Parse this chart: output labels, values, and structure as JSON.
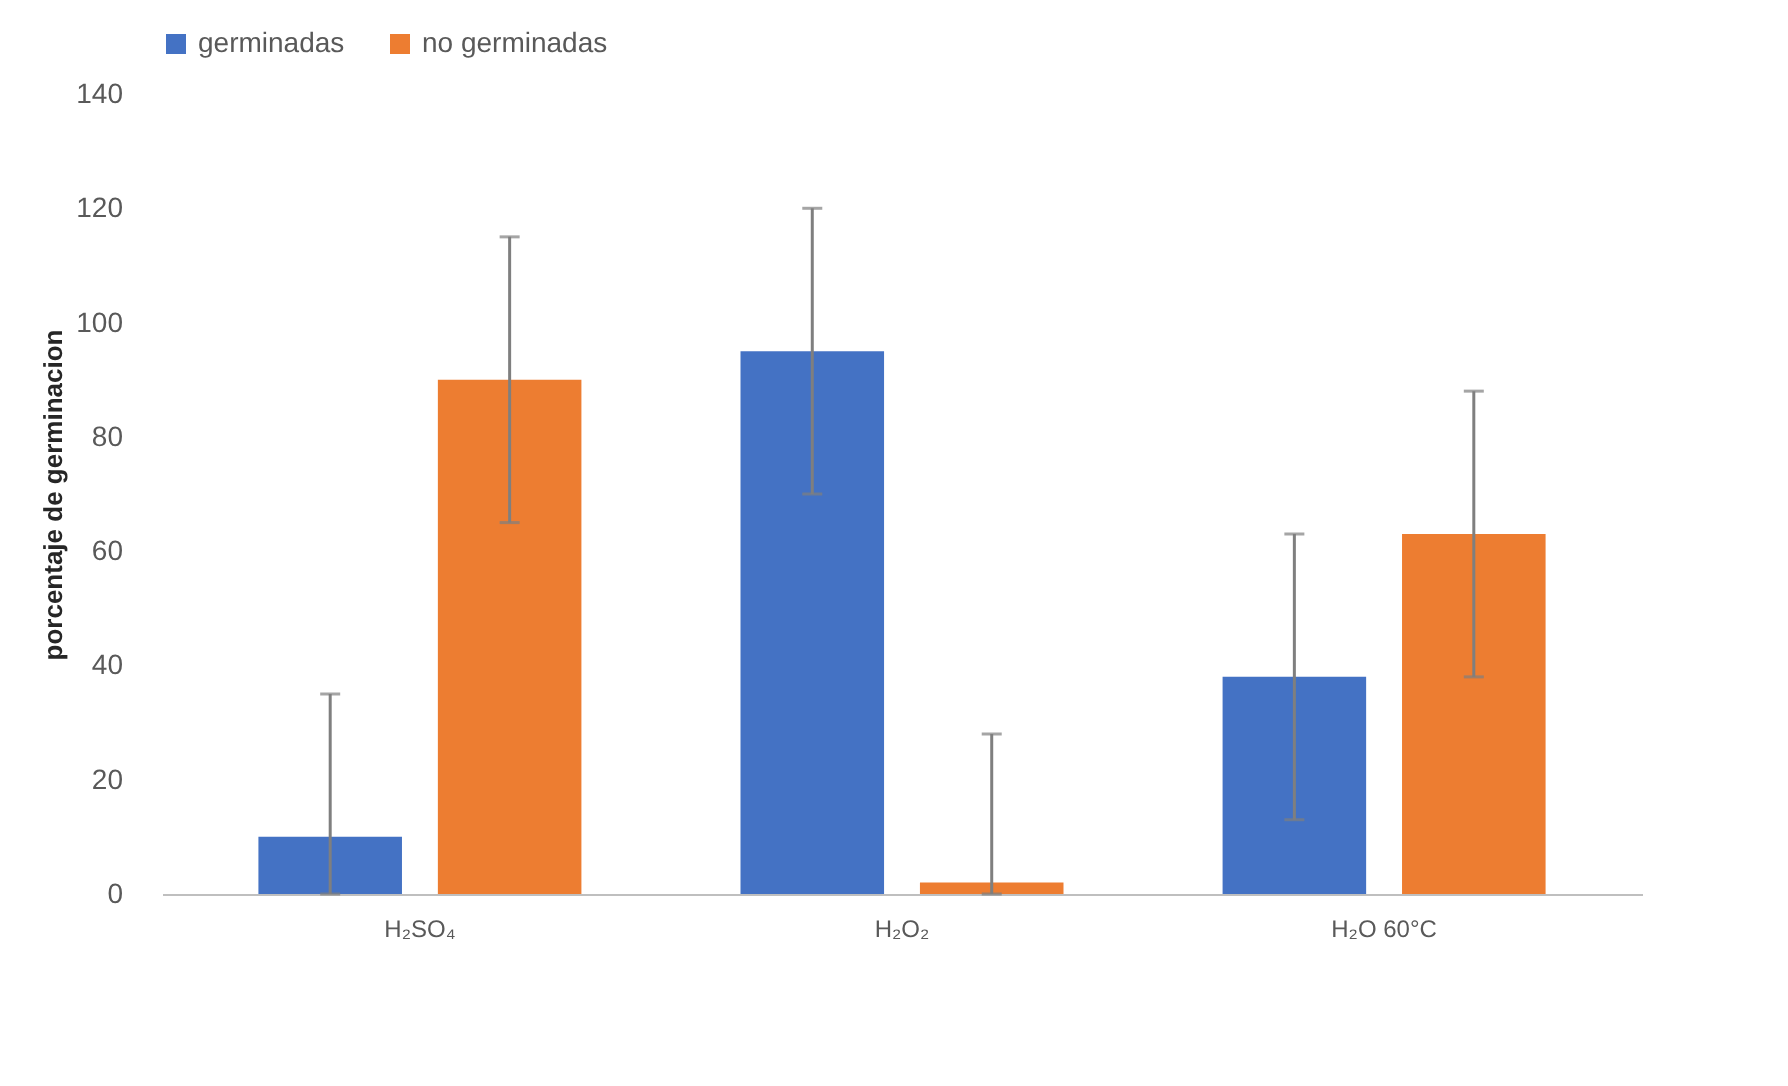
{
  "chart_data": {
    "type": "bar",
    "ylabel": "porcentaje de germinacion",
    "categories": [
      "H₂SO₄",
      "H₂O₂",
      "H₂O 60°C"
    ],
    "series": [
      {
        "name": "germinadas",
        "color": "#4472c4",
        "values": [
          10,
          95,
          38
        ],
        "errors": [
          [
            0,
            35
          ],
          25,
          25
        ]
      },
      {
        "name": "no germinadas",
        "color": "#ed7d31",
        "values": [
          90,
          2,
          63
        ],
        "errors": [
          25,
          [
            0,
            28
          ],
          25
        ]
      }
    ],
    "ylim": [
      0,
      140
    ],
    "yticks": [
      0,
      20,
      40,
      60,
      80,
      100,
      120,
      140
    ],
    "grid": false,
    "legend": "top"
  }
}
